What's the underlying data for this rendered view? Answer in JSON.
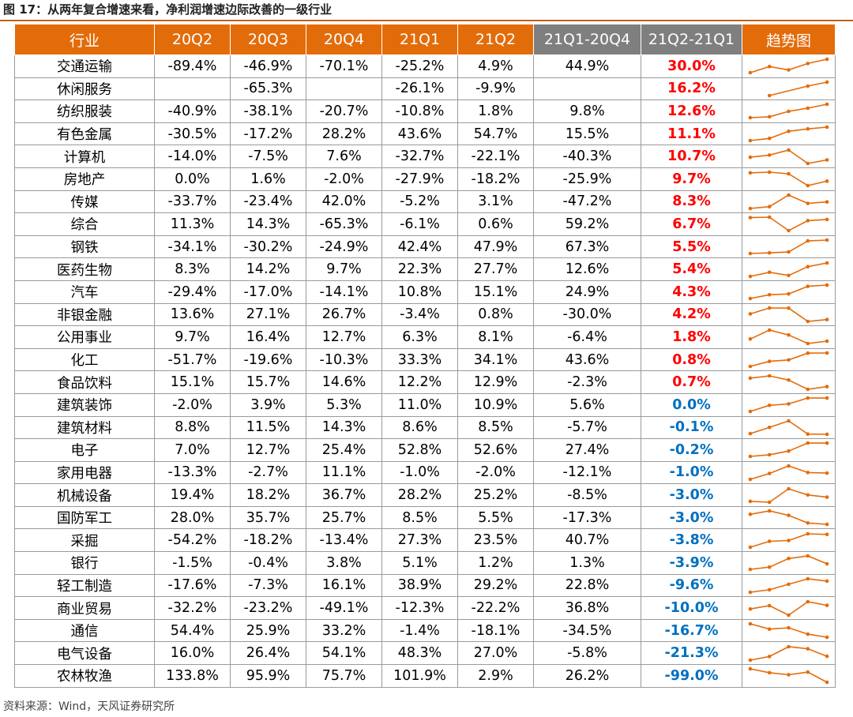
{
  "title": "图 17：从两年复合增速来看，净利润增速边际改善的一级行业",
  "source": "资料来源：Wind，天风证券研究所",
  "colors": {
    "header": "#e36c0a",
    "header_dark": "#7f7f7f",
    "positive": "#ff0000",
    "negative": "#0070c0",
    "sparkline": "#e36c0a"
  },
  "chart_data": {
    "type": "table",
    "columns": [
      "行业",
      "20Q2",
      "20Q3",
      "20Q4",
      "21Q1",
      "21Q2",
      "21Q1-20Q4",
      "21Q2-21Q1",
      "趋势图"
    ],
    "rows": [
      {
        "industry": "交通运输",
        "q2_20": "-89.4%",
        "q3_20": "-46.9%",
        "q4_20": "-70.1%",
        "q1_21": "-25.2%",
        "q2_21": "4.9%",
        "d1": "44.9%",
        "d2": "30.0%"
      },
      {
        "industry": "休闲服务",
        "q2_20": "",
        "q3_20": "-65.3%",
        "q4_20": "",
        "q1_21": "-26.1%",
        "q2_21": "-9.9%",
        "d1": "",
        "d2": "16.2%"
      },
      {
        "industry": "纺织服装",
        "q2_20": "-40.9%",
        "q3_20": "-38.1%",
        "q4_20": "-20.7%",
        "q1_21": "-10.8%",
        "q2_21": "1.8%",
        "d1": "9.8%",
        "d2": "12.6%"
      },
      {
        "industry": "有色金属",
        "q2_20": "-30.5%",
        "q3_20": "-17.2%",
        "q4_20": "28.2%",
        "q1_21": "43.6%",
        "q2_21": "54.7%",
        "d1": "15.5%",
        "d2": "11.1%"
      },
      {
        "industry": "计算机",
        "q2_20": "-14.0%",
        "q3_20": "-7.5%",
        "q4_20": "7.6%",
        "q1_21": "-32.7%",
        "q2_21": "-22.1%",
        "d1": "-40.3%",
        "d2": "10.7%"
      },
      {
        "industry": "房地产",
        "q2_20": "0.0%",
        "q3_20": "1.6%",
        "q4_20": "-2.0%",
        "q1_21": "-27.9%",
        "q2_21": "-18.2%",
        "d1": "-25.9%",
        "d2": "9.7%"
      },
      {
        "industry": "传媒",
        "q2_20": "-33.7%",
        "q3_20": "-23.4%",
        "q4_20": "42.0%",
        "q1_21": "-5.2%",
        "q2_21": "3.1%",
        "d1": "-47.2%",
        "d2": "8.3%"
      },
      {
        "industry": "综合",
        "q2_20": "11.3%",
        "q3_20": "14.3%",
        "q4_20": "-65.3%",
        "q1_21": "-6.1%",
        "q2_21": "0.6%",
        "d1": "59.2%",
        "d2": "6.7%"
      },
      {
        "industry": "钢铁",
        "q2_20": "-34.1%",
        "q3_20": "-30.2%",
        "q4_20": "-24.9%",
        "q1_21": "42.4%",
        "q2_21": "47.9%",
        "d1": "67.3%",
        "d2": "5.5%"
      },
      {
        "industry": "医药生物",
        "q2_20": "8.3%",
        "q3_20": "14.2%",
        "q4_20": "9.7%",
        "q1_21": "22.3%",
        "q2_21": "27.7%",
        "d1": "12.6%",
        "d2": "5.4%"
      },
      {
        "industry": "汽车",
        "q2_20": "-29.4%",
        "q3_20": "-17.0%",
        "q4_20": "-14.1%",
        "q1_21": "10.8%",
        "q2_21": "15.1%",
        "d1": "24.9%",
        "d2": "4.3%"
      },
      {
        "industry": "非银金融",
        "q2_20": "13.6%",
        "q3_20": "27.1%",
        "q4_20": "26.7%",
        "q1_21": "-3.4%",
        "q2_21": "0.8%",
        "d1": "-30.0%",
        "d2": "4.2%"
      },
      {
        "industry": "公用事业",
        "q2_20": "9.7%",
        "q3_20": "16.4%",
        "q4_20": "12.7%",
        "q1_21": "6.3%",
        "q2_21": "8.1%",
        "d1": "-6.4%",
        "d2": "1.8%"
      },
      {
        "industry": "化工",
        "q2_20": "-51.7%",
        "q3_20": "-19.6%",
        "q4_20": "-10.3%",
        "q1_21": "33.3%",
        "q2_21": "34.1%",
        "d1": "43.6%",
        "d2": "0.8%"
      },
      {
        "industry": "食品饮料",
        "q2_20": "15.1%",
        "q3_20": "15.7%",
        "q4_20": "14.6%",
        "q1_21": "12.2%",
        "q2_21": "12.9%",
        "d1": "-2.3%",
        "d2": "0.7%"
      },
      {
        "industry": "建筑装饰",
        "q2_20": "-2.0%",
        "q3_20": "3.9%",
        "q4_20": "5.3%",
        "q1_21": "11.0%",
        "q2_21": "10.9%",
        "d1": "5.6%",
        "d2": "0.0%"
      },
      {
        "industry": "建筑材料",
        "q2_20": "8.8%",
        "q3_20": "11.5%",
        "q4_20": "14.3%",
        "q1_21": "8.6%",
        "q2_21": "8.5%",
        "d1": "-5.7%",
        "d2": "-0.1%"
      },
      {
        "industry": "电子",
        "q2_20": "7.0%",
        "q3_20": "12.7%",
        "q4_20": "25.4%",
        "q1_21": "52.8%",
        "q2_21": "52.6%",
        "d1": "27.4%",
        "d2": "-0.2%"
      },
      {
        "industry": "家用电器",
        "q2_20": "-13.3%",
        "q3_20": "-2.7%",
        "q4_20": "11.1%",
        "q1_21": "-1.0%",
        "q2_21": "-2.0%",
        "d1": "-12.1%",
        "d2": "-1.0%"
      },
      {
        "industry": "机械设备",
        "q2_20": "19.4%",
        "q3_20": "18.2%",
        "q4_20": "36.7%",
        "q1_21": "28.2%",
        "q2_21": "25.2%",
        "d1": "-8.5%",
        "d2": "-3.0%"
      },
      {
        "industry": "国防军工",
        "q2_20": "28.0%",
        "q3_20": "35.7%",
        "q4_20": "25.7%",
        "q1_21": "8.5%",
        "q2_21": "5.5%",
        "d1": "-17.3%",
        "d2": "-3.0%"
      },
      {
        "industry": "采掘",
        "q2_20": "-54.2%",
        "q3_20": "-18.2%",
        "q4_20": "-13.4%",
        "q1_21": "27.3%",
        "q2_21": "23.5%",
        "d1": "40.7%",
        "d2": "-3.8%"
      },
      {
        "industry": "银行",
        "q2_20": "-1.5%",
        "q3_20": "-0.4%",
        "q4_20": "3.8%",
        "q1_21": "5.1%",
        "q2_21": "1.2%",
        "d1": "1.3%",
        "d2": "-3.9%"
      },
      {
        "industry": "轻工制造",
        "q2_20": "-17.6%",
        "q3_20": "-7.3%",
        "q4_20": "16.1%",
        "q1_21": "38.9%",
        "q2_21": "29.2%",
        "d1": "22.8%",
        "d2": "-9.6%"
      },
      {
        "industry": "商业贸易",
        "q2_20": "-32.2%",
        "q3_20": "-23.2%",
        "q4_20": "-49.1%",
        "q1_21": "-12.3%",
        "q2_21": "-22.2%",
        "d1": "36.8%",
        "d2": "-10.0%"
      },
      {
        "industry": "通信",
        "q2_20": "54.4%",
        "q3_20": "25.9%",
        "q4_20": "33.2%",
        "q1_21": "-1.4%",
        "q2_21": "-18.1%",
        "d1": "-34.5%",
        "d2": "-16.7%"
      },
      {
        "industry": "电气设备",
        "q2_20": "16.0%",
        "q3_20": "26.4%",
        "q4_20": "54.1%",
        "q1_21": "48.3%",
        "q2_21": "27.0%",
        "d1": "-5.8%",
        "d2": "-21.3%"
      },
      {
        "industry": "农林牧渔",
        "q2_20": "133.8%",
        "q3_20": "95.9%",
        "q4_20": "75.7%",
        "q1_21": "101.9%",
        "q2_21": "2.9%",
        "d1": "26.2%",
        "d2": "-99.0%"
      }
    ]
  }
}
